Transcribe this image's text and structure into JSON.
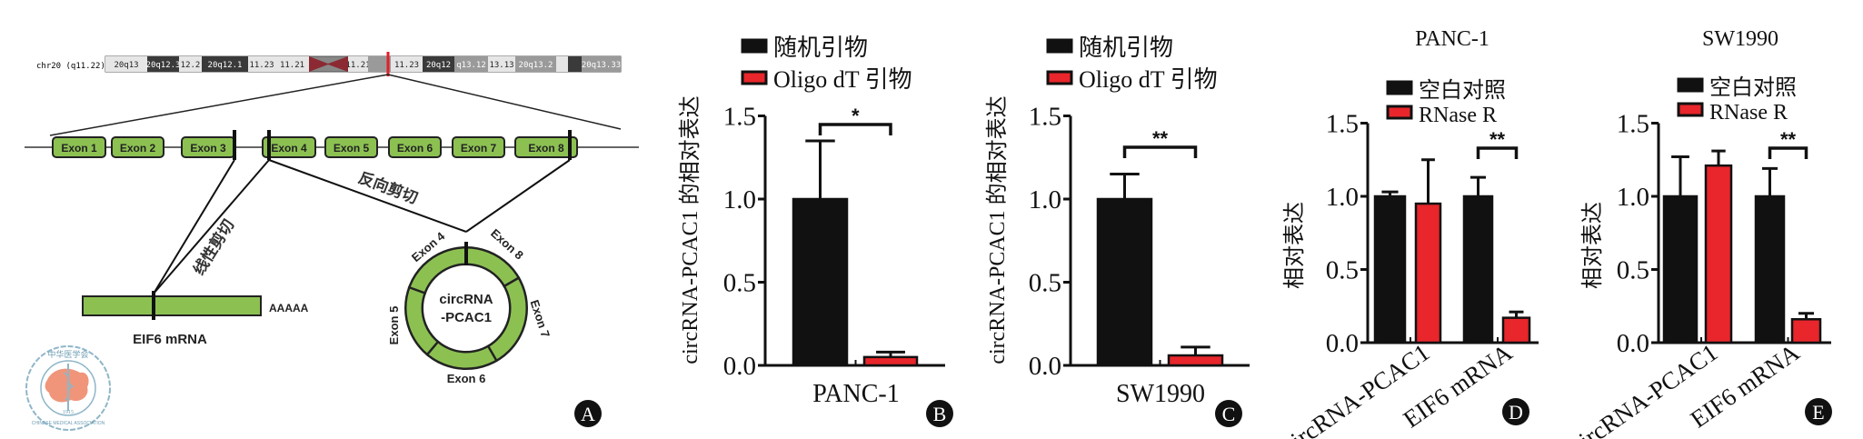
{
  "colors": {
    "black_bar": "#111111",
    "red_bar": "#e8262b",
    "exon_green": "#8cc152",
    "centromere": "#8b2a32",
    "marker_red": "#e41e26",
    "logo_map": "#f0957a",
    "logo_outline": "#8fb6c8"
  },
  "panel_a": {
    "panel_letter": "A",
    "chromosome_label": "chr20 (q11.22)",
    "bands": [
      {
        "label": "20q13",
        "shade": "light"
      },
      {
        "label": "20q12.3",
        "shade": "dark"
      },
      {
        "label": "12.2",
        "shade": "light"
      },
      {
        "label": "20q12.1",
        "shade": "dark"
      },
      {
        "label": "11.23",
        "shade": "light"
      },
      {
        "label": "11.21",
        "shade": "light"
      },
      {
        "label": "11.21",
        "shade": "light"
      },
      {
        "label": "",
        "shade": "grey"
      },
      {
        "label": "11.23",
        "shade": "light"
      },
      {
        "label": "20q12",
        "shade": "dark"
      },
      {
        "label": "q13.12",
        "shade": "grey"
      },
      {
        "label": "13.13",
        "shade": "light"
      },
      {
        "label": "20q13.2",
        "shade": "grey"
      },
      {
        "label": "",
        "shade": "light"
      },
      {
        "label": "",
        "shade": "dark"
      },
      {
        "label": "20q13.33",
        "shade": "grey"
      }
    ],
    "exons": [
      "Exon 1",
      "Exon 2",
      "Exon 3",
      "Exon 4",
      "Exon 5",
      "Exon 6",
      "Exon 7",
      "Exon 8"
    ],
    "linear_splicing_label": "线性剪切",
    "back_splicing_label": "反向剪切",
    "mrna_label": "EIF6 mRNA",
    "polya_label": "AAAAA",
    "circ_label_line1": "circRNA",
    "circ_label_line2": "-PCAC1",
    "circ_exons": {
      "e4": "Exon 4",
      "e8": "Exon 8",
      "e7": "Exon 7",
      "e6": "Exon 6",
      "e5": "Exon 5"
    },
    "logo": {
      "top_text": "中华医学会",
      "ring_text": "CHINESE MEDICAL ASSOCIATION",
      "year": "1915"
    }
  },
  "chart_data": [
    {
      "panel_letter": "B",
      "type": "bar",
      "title": "",
      "ylabel": "circRNA-PCAC1 的相对表达",
      "xlabel": "",
      "categories": [
        "PANC-1"
      ],
      "series": [
        {
          "name": "随机引物",
          "color": "#111111",
          "values": [
            1.0
          ],
          "error": [
            0.35
          ]
        },
        {
          "name": "Oligo dT 引物",
          "color": "#e8262b",
          "values": [
            0.05
          ],
          "error": [
            0.03
          ]
        }
      ],
      "ylim": [
        0,
        1.5
      ],
      "yticks": [
        "0.0",
        "0.5",
        "1.0",
        "1.5"
      ],
      "significance": [
        {
          "category": "PANC-1",
          "label": "*"
        }
      ],
      "legend": "top",
      "grid": false
    },
    {
      "panel_letter": "C",
      "type": "bar",
      "title": "",
      "ylabel": "circRNA-PCAC1 的相对表达",
      "xlabel": "",
      "categories": [
        "SW1990"
      ],
      "series": [
        {
          "name": "随机引物",
          "color": "#111111",
          "values": [
            1.0
          ],
          "error": [
            0.15
          ]
        },
        {
          "name": "Oligo dT 引物",
          "color": "#e8262b",
          "values": [
            0.06
          ],
          "error": [
            0.05
          ]
        }
      ],
      "ylim": [
        0,
        1.5
      ],
      "yticks": [
        "0.0",
        "0.5",
        "1.0",
        "1.5"
      ],
      "significance": [
        {
          "category": "SW1990",
          "label": "**"
        }
      ],
      "legend": "top",
      "grid": false
    },
    {
      "panel_letter": "D",
      "type": "bar",
      "title": "PANC-1",
      "ylabel": "相对表达",
      "xlabel": "",
      "categories": [
        "circRNA-PCAC1",
        "EIF6 mRNA"
      ],
      "series": [
        {
          "name": "空白对照",
          "color": "#111111",
          "values": [
            1.0,
            1.0
          ],
          "error": [
            0.03,
            0.13
          ]
        },
        {
          "name": "RNase R",
          "color": "#e8262b",
          "values": [
            0.95,
            0.17
          ],
          "error": [
            0.3,
            0.04
          ]
        }
      ],
      "ylim": [
        0,
        1.5
      ],
      "yticks": [
        "0.0",
        "0.5",
        "1.0",
        "1.5"
      ],
      "significance": [
        {
          "category": "EIF6 mRNA",
          "label": "**"
        }
      ],
      "legend": "top",
      "grid": false
    },
    {
      "panel_letter": "E",
      "type": "bar",
      "title": "SW1990",
      "ylabel": "相对表达",
      "xlabel": "",
      "categories": [
        "circRNA-PCAC1",
        "EIF6 mRNA"
      ],
      "series": [
        {
          "name": "空白对照",
          "color": "#111111",
          "values": [
            1.0,
            1.0
          ],
          "error": [
            0.27,
            0.19
          ]
        },
        {
          "name": "RNase R",
          "color": "#e8262b",
          "values": [
            1.21,
            0.16
          ],
          "error": [
            0.1,
            0.04
          ]
        }
      ],
      "ylim": [
        0,
        1.5
      ],
      "yticks": [
        "0.0",
        "0.5",
        "1.0",
        "1.5"
      ],
      "significance": [
        {
          "category": "EIF6 mRNA",
          "label": "**"
        }
      ],
      "legend": "top",
      "grid": false
    }
  ]
}
